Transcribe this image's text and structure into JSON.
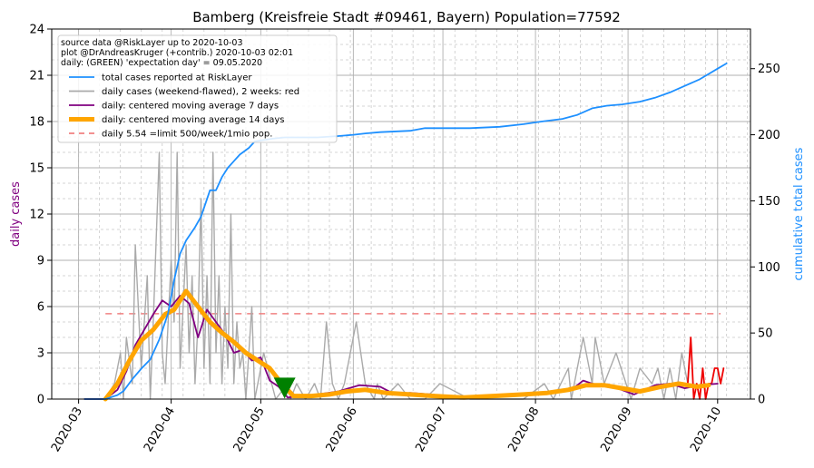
{
  "chart_data": {
    "type": "line",
    "title": "Bamberg (Kreisfreie Stadt #09461, Bayern) Population=77592",
    "ylabel_left": "daily cases",
    "ylabel_right": "cumulative total cases",
    "ylim_left": [
      0,
      24
    ],
    "ylim_right": [
      0,
      280
    ],
    "yticks_left": [
      "0",
      "3",
      "6",
      "9",
      "12",
      "15",
      "18",
      "21",
      "24"
    ],
    "yticks_right": [
      "0",
      "50",
      "100",
      "150",
      "200",
      "250"
    ],
    "x_range": [
      "2020-02-21",
      "2020-10-12"
    ],
    "xticks": [
      "2020-03",
      "2020-04",
      "2020-05",
      "2020-06",
      "2020-07",
      "2020-08",
      "2020-09",
      "2020-10"
    ],
    "grid": true,
    "legend_position": "top-left",
    "legend_notes": [
      "source data @RiskLayer up to 2020-10-03",
      "plot @DrAndreasKruger (+contrib.) 2020-10-03 02:01",
      "daily: (GREEN) 'expectation day' = 09.05.2020"
    ],
    "legend": [
      {
        "label": "total cases reported at RiskLayer",
        "color": "#1e90ff",
        "style": "solid"
      },
      {
        "label": "daily cases (weekend-flawed), 2 weeks: red",
        "color": "#aaaaaa",
        "style": "solid"
      },
      {
        "label": "daily: centered moving average 7 days",
        "color": "#800080",
        "style": "solid"
      },
      {
        "label": "daily: centered moving average 14 days",
        "color": "#ffa500",
        "style": "thick"
      },
      {
        "label": "daily 5.54 =limit 500/week/1mio pop.",
        "color": "#f08080",
        "style": "dashed"
      }
    ],
    "limit_line": {
      "value": 5.54,
      "x_start": "2020-03-10",
      "x_end": "2020-10-02"
    },
    "expectation_marker": {
      "date": "2020-05-09",
      "y": 0.8,
      "color": "#008000"
    },
    "series": [
      {
        "name": "total cases reported at RiskLayer",
        "axis": "right",
        "color": "#1e90ff",
        "x": [
          "2020-03-03",
          "2020-03-10",
          "2020-03-14",
          "2020-03-16",
          "2020-03-19",
          "2020-03-22",
          "2020-03-25",
          "2020-03-28",
          "2020-03-31",
          "2020-04-02",
          "2020-04-04",
          "2020-04-06",
          "2020-04-09",
          "2020-04-11",
          "2020-04-14",
          "2020-04-16",
          "2020-04-18",
          "2020-04-20",
          "2020-04-22",
          "2020-04-24",
          "2020-04-27",
          "2020-04-29",
          "2020-05-02",
          "2020-05-05",
          "2020-05-09",
          "2020-05-13",
          "2020-05-20",
          "2020-05-27",
          "2020-06-01",
          "2020-06-05",
          "2020-06-10",
          "2020-06-20",
          "2020-06-25",
          "2020-07-10",
          "2020-07-20",
          "2020-07-28",
          "2020-08-03",
          "2020-08-10",
          "2020-08-15",
          "2020-08-20",
          "2020-08-25",
          "2020-08-30",
          "2020-09-05",
          "2020-09-10",
          "2020-09-15",
          "2020-09-20",
          "2020-09-25",
          "2020-10-01",
          "2020-10-04"
        ],
        "y": [
          0,
          0,
          3,
          6,
          15,
          23,
          30,
          45,
          65,
          90,
          110,
          120,
          130,
          138,
          158,
          158,
          168,
          175,
          180,
          185,
          190,
          195,
          196,
          197,
          198,
          198,
          198,
          199,
          200,
          201,
          202,
          203,
          205,
          205,
          206,
          208,
          210,
          212,
          215,
          220,
          222,
          223,
          225,
          228,
          232,
          237,
          242,
          250,
          254
        ]
      },
      {
        "name": "daily cases (weekend-flawed), 2 weeks: red",
        "axis": "left",
        "color": "#aaaaaa",
        "x": [
          "2020-03-03",
          "2020-03-10",
          "2020-03-13",
          "2020-03-15",
          "2020-03-16",
          "2020-03-17",
          "2020-03-19",
          "2020-03-20",
          "2020-03-22",
          "2020-03-24",
          "2020-03-25",
          "2020-03-26",
          "2020-03-28",
          "2020-03-29",
          "2020-03-30",
          "2020-04-01",
          "2020-04-02",
          "2020-04-03",
          "2020-04-04",
          "2020-04-05",
          "2020-04-06",
          "2020-04-07",
          "2020-04-08",
          "2020-04-09",
          "2020-04-10",
          "2020-04-11",
          "2020-04-12",
          "2020-04-13",
          "2020-04-14",
          "2020-04-15",
          "2020-04-16",
          "2020-04-17",
          "2020-04-18",
          "2020-04-19",
          "2020-04-20",
          "2020-04-21",
          "2020-04-22",
          "2020-04-23",
          "2020-04-24",
          "2020-04-25",
          "2020-04-26",
          "2020-04-28",
          "2020-04-29",
          "2020-05-02",
          "2020-05-06",
          "2020-05-10",
          "2020-05-11",
          "2020-05-13",
          "2020-05-16",
          "2020-05-19",
          "2020-05-21",
          "2020-05-23",
          "2020-05-25",
          "2020-05-27",
          "2020-05-29",
          "2020-06-02",
          "2020-06-05",
          "2020-06-08",
          "2020-06-09",
          "2020-06-11",
          "2020-06-16",
          "2020-06-20",
          "2020-06-25",
          "2020-06-30",
          "2020-07-10",
          "2020-07-20",
          "2020-07-28",
          "2020-08-04",
          "2020-08-07",
          "2020-08-12",
          "2020-08-13",
          "2020-08-17",
          "2020-08-20",
          "2020-08-21",
          "2020-08-24",
          "2020-08-28",
          "2020-09-02",
          "2020-09-05",
          "2020-09-09",
          "2020-09-11",
          "2020-09-13",
          "2020-09-15",
          "2020-09-17",
          "2020-09-19",
          "2020-09-21"
        ],
        "y": [
          0,
          0,
          1,
          3,
          0,
          4,
          1,
          10,
          2,
          8,
          0,
          5,
          16,
          3,
          1,
          9,
          5,
          16,
          2,
          6,
          10,
          3,
          8,
          1,
          5,
          13,
          2,
          8,
          1,
          16,
          3,
          8,
          1,
          6,
          2,
          12,
          1,
          5,
          2,
          3,
          0,
          6,
          0,
          3,
          0,
          1,
          0,
          1,
          0,
          1,
          0,
          5,
          1,
          0,
          1,
          5,
          1,
          0,
          1,
          0,
          1,
          0,
          0,
          1,
          0,
          0,
          0,
          1,
          0,
          2,
          0,
          4,
          1,
          4,
          1,
          3,
          0,
          2,
          1,
          2,
          0,
          2,
          0,
          3,
          1
        ]
      },
      {
        "name": "daily cases, last 2 weeks",
        "axis": "left",
        "color": "#ee0000",
        "x": [
          "2020-09-21",
          "2020-09-22",
          "2020-09-23",
          "2020-09-24",
          "2020-09-25",
          "2020-09-26",
          "2020-09-27",
          "2020-09-28",
          "2020-09-29",
          "2020-09-30",
          "2020-10-01",
          "2020-10-02",
          "2020-10-03"
        ],
        "y": [
          1,
          4,
          0,
          1,
          0,
          2,
          0,
          1,
          1,
          2,
          2,
          1,
          2
        ]
      },
      {
        "name": "daily: centered moving average 7 days",
        "axis": "left",
        "color": "#800080",
        "x": [
          "2020-03-03",
          "2020-03-10",
          "2020-03-14",
          "2020-03-17",
          "2020-03-20",
          "2020-03-23",
          "2020-03-26",
          "2020-03-29",
          "2020-04-01",
          "2020-04-04",
          "2020-04-07",
          "2020-04-10",
          "2020-04-13",
          "2020-04-16",
          "2020-04-19",
          "2020-04-22",
          "2020-04-25",
          "2020-04-28",
          "2020-05-01",
          "2020-05-04",
          "2020-05-07",
          "2020-05-10",
          "2020-05-14",
          "2020-05-20",
          "2020-05-27",
          "2020-06-03",
          "2020-06-10",
          "2020-06-15",
          "2020-06-20",
          "2020-06-27",
          "2020-07-05",
          "2020-07-15",
          "2020-07-25",
          "2020-08-05",
          "2020-08-13",
          "2020-08-17",
          "2020-08-20",
          "2020-08-27",
          "2020-09-03",
          "2020-09-10",
          "2020-09-15",
          "2020-09-20",
          "2020-09-25",
          "2020-10-01"
        ],
        "y": [
          0,
          0,
          0.6,
          1.8,
          3.5,
          4.5,
          5.5,
          6.4,
          6.0,
          6.7,
          6.2,
          4.0,
          5.8,
          5.0,
          4.2,
          3.0,
          3.2,
          2.5,
          2.7,
          1.2,
          0.8,
          0.1,
          0.2,
          0.3,
          0.5,
          0.9,
          0.8,
          0.3,
          0.4,
          0.3,
          0.1,
          0.2,
          0.3,
          0.4,
          0.6,
          1.2,
          1.0,
          0.8,
          0.3,
          0.9,
          1.0,
          0.7,
          0.9,
          1.0
        ]
      },
      {
        "name": "daily: centered moving average 14 days",
        "axis": "left",
        "color": "#ffa500",
        "x": [
          "2020-03-10",
          "2020-03-14",
          "2020-03-18",
          "2020-03-22",
          "2020-03-26",
          "2020-03-30",
          "2020-04-02",
          "2020-04-06",
          "2020-04-10",
          "2020-04-14",
          "2020-04-18",
          "2020-04-22",
          "2020-04-26",
          "2020-04-30",
          "2020-05-04",
          "2020-05-08",
          "2020-05-12",
          "2020-05-18",
          "2020-05-24",
          "2020-05-30",
          "2020-06-05",
          "2020-06-12",
          "2020-06-20",
          "2020-06-28",
          "2020-07-08",
          "2020-07-18",
          "2020-07-28",
          "2020-08-05",
          "2020-08-12",
          "2020-08-18",
          "2020-08-24",
          "2020-08-30",
          "2020-09-05",
          "2020-09-12",
          "2020-09-18",
          "2020-09-24",
          "2020-09-28"
        ],
        "y": [
          0,
          1.0,
          2.5,
          3.8,
          4.5,
          5.5,
          5.8,
          7.0,
          6.0,
          5.0,
          4.3,
          3.7,
          3.0,
          2.5,
          2.0,
          1.0,
          0.2,
          0.2,
          0.3,
          0.5,
          0.6,
          0.4,
          0.3,
          0.2,
          0.1,
          0.2,
          0.3,
          0.4,
          0.6,
          0.9,
          0.9,
          0.7,
          0.5,
          0.8,
          1.0,
          0.8,
          0.9
        ]
      }
    ]
  }
}
